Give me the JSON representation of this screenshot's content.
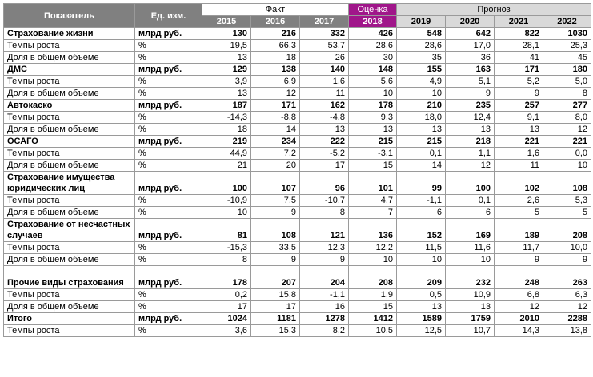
{
  "header": {
    "indicator": "Показатель",
    "unit": "Ед. изм.",
    "fact": "Факт",
    "estimate": "Оценка",
    "forecast": "Прогноз",
    "years": [
      "2015",
      "2016",
      "2017",
      "2018",
      "2019",
      "2020",
      "2021",
      "2022"
    ]
  },
  "rows": [
    {
      "name": "Страхование жизни",
      "unit": "млрд руб.",
      "values": [
        "130",
        "216",
        "332",
        "426",
        "548",
        "642",
        "822",
        "1030"
      ],
      "main": true
    },
    {
      "name": "Темпы роста",
      "unit": "%",
      "values": [
        "19,5",
        "66,3",
        "53,7",
        "28,6",
        "28,6",
        "17,0",
        "28,1",
        "25,3"
      ]
    },
    {
      "name": "Доля в общем объеме",
      "unit": "%",
      "values": [
        "13",
        "18",
        "26",
        "30",
        "35",
        "36",
        "41",
        "45"
      ]
    },
    {
      "name": "ДМС",
      "unit": "млрд руб.",
      "values": [
        "129",
        "138",
        "140",
        "148",
        "155",
        "163",
        "171",
        "180"
      ],
      "main": true
    },
    {
      "name": "Темпы роста",
      "unit": "%",
      "values": [
        "3,9",
        "6,9",
        "1,6",
        "5,6",
        "4,9",
        "5,1",
        "5,2",
        "5,0"
      ]
    },
    {
      "name": "Доля в общем объеме",
      "unit": "%",
      "values": [
        "13",
        "12",
        "11",
        "10",
        "10",
        "9",
        "9",
        "8"
      ]
    },
    {
      "name": "Автокаско",
      "unit": "млрд руб.",
      "values": [
        "187",
        "171",
        "162",
        "178",
        "210",
        "235",
        "257",
        "277"
      ],
      "main": true
    },
    {
      "name": "Темпы роста",
      "unit": "%",
      "values": [
        "-14,3",
        "-8,8",
        "-4,8",
        "9,3",
        "18,0",
        "12,4",
        "9,1",
        "8,0"
      ]
    },
    {
      "name": "Доля в общем объеме",
      "unit": "%",
      "values": [
        "18",
        "14",
        "13",
        "13",
        "13",
        "13",
        "13",
        "12"
      ]
    },
    {
      "name": "ОСАГО",
      "unit": "млрд руб.",
      "values": [
        "219",
        "234",
        "222",
        "215",
        "215",
        "218",
        "221",
        "221"
      ],
      "main": true
    },
    {
      "name": "Темпы роста",
      "unit": "%",
      "values": [
        "44,9",
        "7,2",
        "-5,2",
        "-3,1",
        "0,1",
        "1,1",
        "1,6",
        "0,0"
      ]
    },
    {
      "name": "Доля в общем объеме",
      "unit": "%",
      "values": [
        "21",
        "20",
        "17",
        "15",
        "14",
        "12",
        "11",
        "10"
      ]
    },
    {
      "name": "Страхование имущества юридических лиц",
      "unit": "млрд руб.",
      "values": [
        "100",
        "107",
        "96",
        "101",
        "99",
        "100",
        "102",
        "108"
      ],
      "main": true,
      "tall": true
    },
    {
      "name": "Темпы роста",
      "unit": "%",
      "values": [
        "-10,9",
        "7,5",
        "-10,7",
        "4,7",
        "-1,1",
        "0,1",
        "2,6",
        "5,3"
      ]
    },
    {
      "name": "Доля в общем объеме",
      "unit": "%",
      "values": [
        "10",
        "9",
        "8",
        "7",
        "6",
        "6",
        "5",
        "5"
      ]
    },
    {
      "name": "Страхование от несчастных случаев",
      "unit": "млрд руб.",
      "values": [
        "81",
        "108",
        "121",
        "136",
        "152",
        "169",
        "189",
        "208"
      ],
      "main": true,
      "tall": true
    },
    {
      "name": "Темпы роста",
      "unit": "%",
      "values": [
        "-15,3",
        "33,5",
        "12,3",
        "12,2",
        "11,5",
        "11,6",
        "11,7",
        "10,0"
      ]
    },
    {
      "name": "Доля в общем объеме",
      "unit": "%",
      "values": [
        "8",
        "9",
        "9",
        "10",
        "10",
        "10",
        "9",
        "9"
      ]
    },
    {
      "name": "Прочие виды страхования",
      "unit": "млрд руб.",
      "values": [
        "178",
        "207",
        "204",
        "208",
        "209",
        "232",
        "248",
        "263"
      ],
      "main": true,
      "tall": true
    },
    {
      "name": "Темпы роста",
      "unit": "%",
      "values": [
        "0,2",
        "15,8",
        "-1,1",
        "1,9",
        "0,5",
        "10,9",
        "6,8",
        "6,3"
      ]
    },
    {
      "name": "Доля в общем объеме",
      "unit": "%",
      "values": [
        "17",
        "17",
        "16",
        "15",
        "13",
        "13",
        "12",
        "12"
      ]
    },
    {
      "name": "Итого",
      "unit": "млрд руб.",
      "values": [
        "1024",
        "1181",
        "1278",
        "1412",
        "1589",
        "1759",
        "2010",
        "2288"
      ],
      "main": true
    },
    {
      "name": "Темпы роста",
      "unit": "%",
      "values": [
        "3,6",
        "15,3",
        "8,2",
        "10,5",
        "12,5",
        "10,7",
        "14,3",
        "13,8"
      ]
    }
  ]
}
